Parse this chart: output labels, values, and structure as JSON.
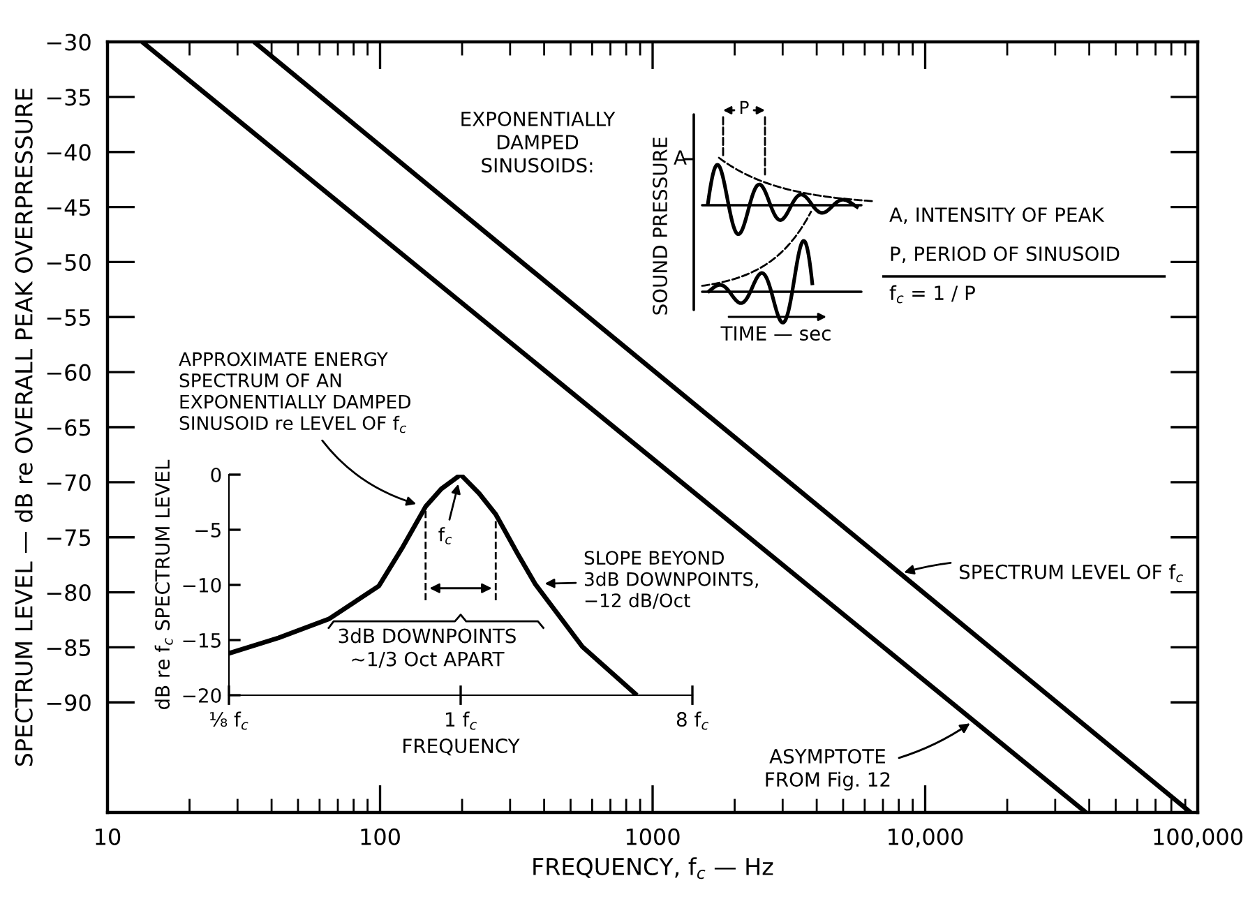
{
  "chart_data": [
    {
      "type": "line",
      "xlabel": "FREQUENCY, f$_{c}$ — Hz",
      "ylabel": "SPECTRUM LEVEL — dB re OVERALL PEAK OVERPRESSURE",
      "log": "x",
      "grid": false,
      "xlim": [
        10,
        100000
      ],
      "ylim": [
        -100,
        -30
      ],
      "xticks": [
        10,
        100,
        1000,
        {
          "value": 10000,
          "label": "10,000"
        },
        {
          "value": 100000,
          "label": "100,000"
        }
      ],
      "yticks": [
        -30,
        -35,
        -40,
        -45,
        -50,
        -55,
        -60,
        -65,
        -70,
        -75,
        -80,
        -85,
        -90
      ],
      "series": [
        {
          "color": "#000000",
          "x": [
            13.4,
            38900
          ],
          "values": [
            -30,
            -100
          ]
        },
        {
          "color": "#000000",
          "x": [
            34.5,
            94200
          ],
          "values": [
            -30,
            -100
          ]
        }
      ],
      "annotations": [
        "EXPONENTIALLY\nDAMPED\nSINUSOIDS:",
        "A",
        "P",
        "SOUND PRESSURE",
        "TIME — sec",
        "A, INTENSITY OF PEAK",
        "P, PERIOD OF SINUSOID",
        "f$_{c}$ = 1 / P",
        {
          "text": "SPECTRUM LEVEL OF f$_{c}$",
          "x": 8100,
          "y": -78.3
        },
        {
          "text": "ASYMPTOTE\nFROM Fig. 12",
          "x": 15000,
          "y": -91.7
        }
      ]
    },
    {
      "type": "line",
      "xlabel": "FREQUENCY",
      "ylabel": "dB re f$_{c}$ SPECTRUM LEVEL",
      "log": "x",
      "grid": false,
      "xlim": [
        0.125,
        8
      ],
      "ylim": [
        -20,
        0
      ],
      "xticks": [
        {
          "value": 0.125,
          "label": "⅛ f$_{c}$"
        },
        {
          "value": 1,
          "label": "1 f$_{c}$"
        },
        {
          "value": 8,
          "label": "8 f$_{c}$"
        }
      ],
      "yticks": [
        -20,
        -15,
        -10,
        -5,
        0
      ],
      "series": [
        {
          "color": "#000000",
          "x": [
            0.125,
            0.195,
            0.306,
            0.48,
            0.59,
            0.73,
            0.84,
            1,
            1.18,
            1.37,
            1.67,
            1.95,
            2.98,
            4.86
          ],
          "values": [
            -16.2,
            -14.8,
            -13.1,
            -10.1,
            -6.7,
            -2.9,
            -1.3,
            0,
            -1.7,
            -3.6,
            -7.2,
            -9.9,
            -15.6,
            -20
          ]
        }
      ],
      "ref_lines": [
        {
          "axis": "x",
          "value": 0.73,
          "line_style": "dashed"
        },
        {
          "axis": "x",
          "value": 1.37,
          "line_style": "dashed"
        }
      ],
      "annotations": [
        {
          "text": "APPROXIMATE ENERGY\nSPECTRUM OF AN\nEXPONENTIALLY DAMPED\nSINUSOID re LEVEL OF f$_{c}$",
          "x": 0.73,
          "y": -2.9
        },
        {
          "text": "f$_{c}$",
          "x": 1,
          "y": 0
        },
        {
          "text": "SLOPE BEYOND\n3dB DOWNPOINTS,\n−12 dB/Oct",
          "x": 1.95,
          "y": -9.9
        },
        "3dB DOWNPOINTS\n~1/3 Oct APART"
      ]
    }
  ]
}
